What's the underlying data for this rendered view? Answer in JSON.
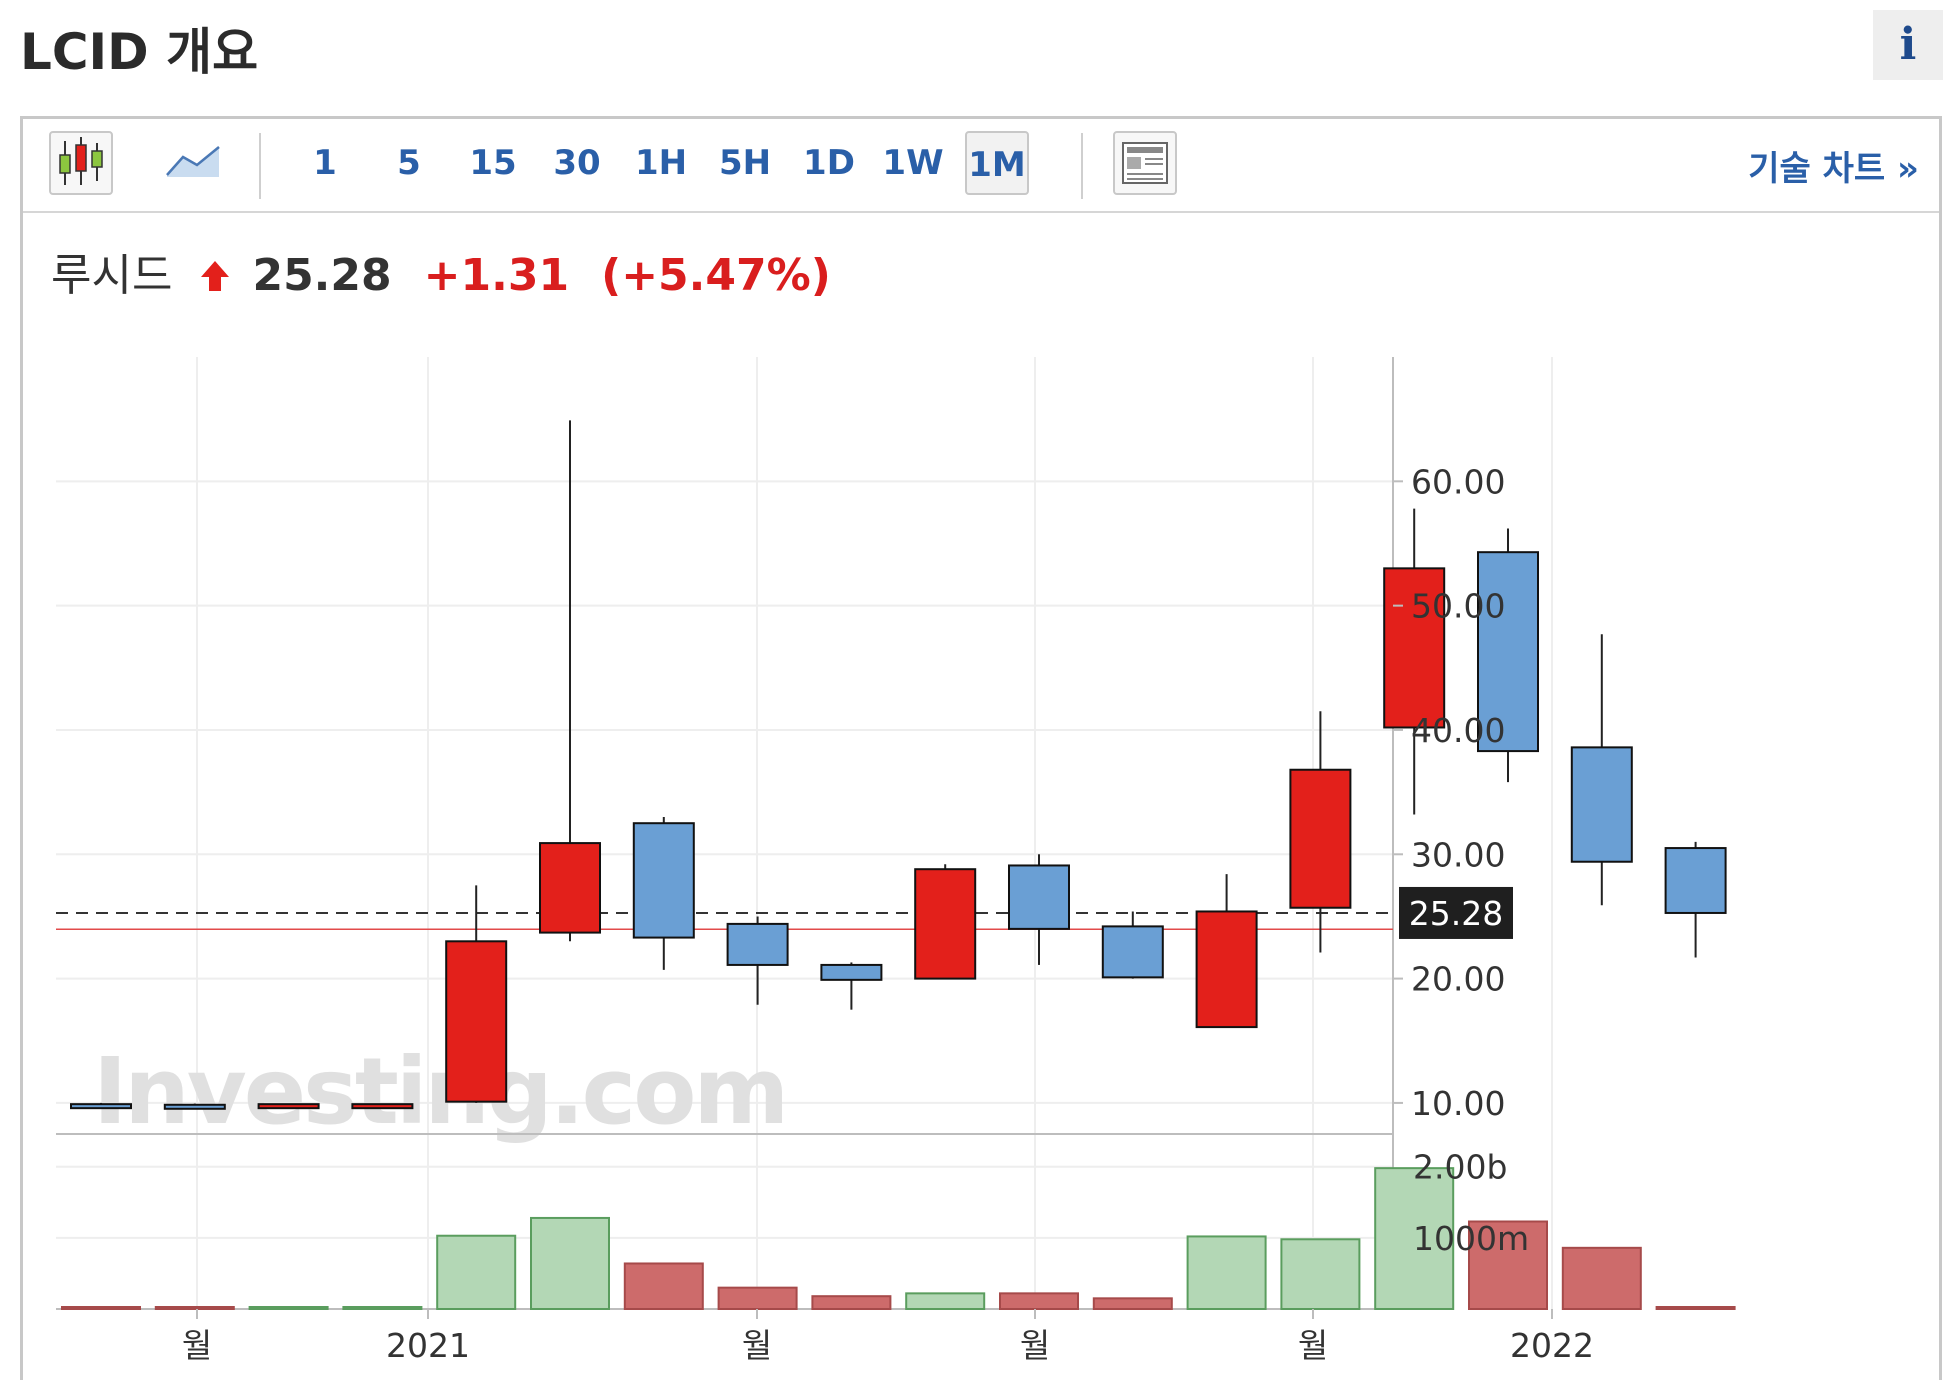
{
  "header": {
    "title": "LCID 개요",
    "info_label": "i"
  },
  "toolbar": {
    "candle_icon": "candlestick-chart-icon",
    "line_icon": "line-chart-icon",
    "news_icon": "news-panel-icon",
    "timeframes": [
      "1",
      "5",
      "15",
      "30",
      "1H",
      "5H",
      "1D",
      "1W",
      "1M"
    ],
    "active_timeframe": "1M",
    "tech_chart_label": "기술 차트 »"
  },
  "quote": {
    "name": "루시드",
    "price": "25.28",
    "change": "+1.31",
    "change_pct": "(+5.47%)",
    "direction": "up"
  },
  "colors": {
    "up": "#e3201b",
    "down": "#6a9fd4",
    "vol_up": "#b3d7b5",
    "vol_down": "#cd6b6b",
    "up_text": "#d91e1e",
    "ref_line": "#e24a4a"
  },
  "chart_data": {
    "type": "candlestick",
    "interval": "1M",
    "price_axis": {
      "ticks": [
        10,
        20,
        30,
        40,
        50,
        60
      ],
      "tick_labels": [
        "10.00",
        "20.00",
        "30.00",
        "40.00",
        "50.00",
        "60.00"
      ],
      "range": [
        7.5,
        70
      ]
    },
    "volume_axis": {
      "tick_labels": [
        "2.00b",
        "1000m"
      ],
      "ticks": [
        2000000000,
        1000000000
      ],
      "range": [
        0,
        2460000000
      ]
    },
    "x_axis": {
      "labels": [
        "월",
        "2021",
        "월",
        "월",
        "월",
        "2022"
      ]
    },
    "last_price": 25.28,
    "last_price_label": "25.28",
    "reference_level": 23.97,
    "candles": [
      {
        "open": 9.9,
        "high": 10.0,
        "low": 9.75,
        "close": 9.9,
        "dir": "down"
      },
      {
        "open": 9.85,
        "high": 9.95,
        "low": 9.7,
        "close": 9.8,
        "dir": "down"
      },
      {
        "open": 9.75,
        "high": 9.9,
        "low": 9.6,
        "close": 9.9,
        "dir": "up"
      },
      {
        "open": 9.75,
        "high": 9.9,
        "low": 9.6,
        "close": 9.9,
        "dir": "up"
      },
      {
        "open": 10.1,
        "high": 27.5,
        "low": 10.0,
        "close": 23.0,
        "dir": "up"
      },
      {
        "open": 23.7,
        "high": 64.9,
        "low": 23.0,
        "close": 30.9,
        "dir": "up"
      },
      {
        "open": 32.5,
        "high": 33.0,
        "low": 20.7,
        "close": 23.3,
        "dir": "down"
      },
      {
        "open": 24.4,
        "high": 25.0,
        "low": 17.9,
        "close": 21.1,
        "dir": "down"
      },
      {
        "open": 21.1,
        "high": 21.3,
        "low": 17.5,
        "close": 19.9,
        "dir": "down"
      },
      {
        "open": 20.0,
        "high": 29.2,
        "low": 20.0,
        "close": 28.8,
        "dir": "up"
      },
      {
        "open": 29.1,
        "high": 30.0,
        "low": 21.1,
        "close": 24.0,
        "dir": "down"
      },
      {
        "open": 24.2,
        "high": 25.4,
        "low": 20.0,
        "close": 20.1,
        "dir": "down"
      },
      {
        "open": 16.1,
        "high": 28.4,
        "low": 16.1,
        "close": 25.4,
        "dir": "up"
      },
      {
        "open": 25.7,
        "high": 41.5,
        "low": 22.1,
        "close": 36.8,
        "dir": "up"
      },
      {
        "open": 40.2,
        "high": 57.8,
        "low": 33.2,
        "close": 53.0,
        "dir": "up"
      },
      {
        "open": 54.3,
        "high": 56.2,
        "low": 35.8,
        "close": 38.3,
        "dir": "down"
      },
      {
        "open": 38.6,
        "high": 47.7,
        "low": 25.9,
        "close": 29.4,
        "dir": "down"
      },
      {
        "open": 30.5,
        "high": 31.0,
        "low": 21.7,
        "close": 25.28,
        "dir": "down"
      }
    ],
    "volume": [
      0,
      0,
      20000000,
      0,
      1030000000,
      1280000000,
      640000000,
      300000000,
      180000000,
      220000000,
      220000000,
      150000000,
      1020000000,
      980000000,
      1980000000,
      1230000000,
      860000000,
      20000000
    ],
    "volume_dir": [
      "down",
      "down",
      "up",
      "up",
      "up",
      "up",
      "down",
      "down",
      "down",
      "up",
      "down",
      "down",
      "up",
      "up",
      "up",
      "down",
      "down",
      "down"
    ],
    "watermark": "Investing.com"
  }
}
